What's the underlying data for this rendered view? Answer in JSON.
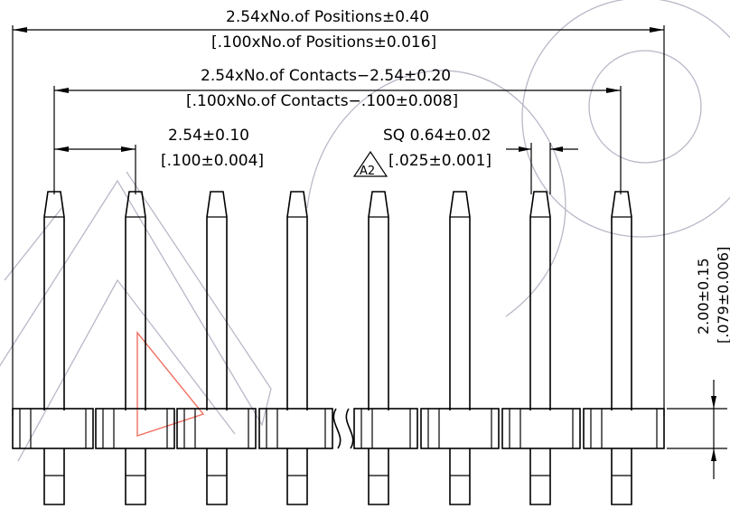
{
  "dimensions": {
    "overall_metric": "2.54xNo.of Positions±0.40",
    "overall_imperial": "[.100xNo.of Positions±0.016]",
    "contacts_metric": "2.54xNo.of Contacts−2.54±0.20",
    "contacts_imperial": "[.100xNo.of Contacts−.100±0.008]",
    "pitch_metric": "2.54±0.10",
    "pitch_imperial": "[.100±0.004]",
    "square_metric": "SQ 0.64±0.02",
    "square_imperial": "[.025±0.001]",
    "height_metric": "2.00±0.15",
    "height_imperial": "[.079±0.006]",
    "revision_marker": "A2"
  },
  "colors": {
    "line": "#000000",
    "watermark": "#b8b8c8",
    "accent_triangle": "#f07060"
  },
  "pins_visible": 8
}
